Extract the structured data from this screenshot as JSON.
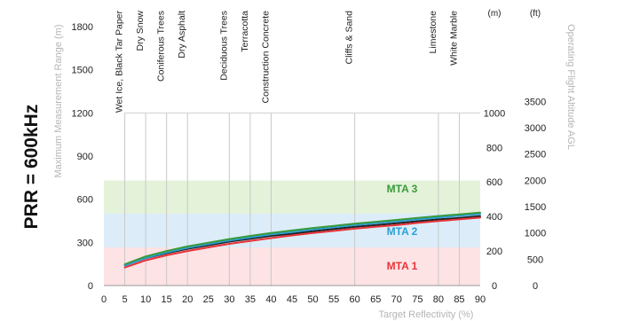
{
  "chart_data": {
    "type": "line",
    "prr_label": "PRR = 600kHz",
    "xlabel": "Target Reflectivity (%)",
    "ylabel": "Maximum Measurement Range (m)",
    "y2label": "Operating Flight Altitude AGL",
    "y2unit_m": "(m)",
    "y3unit_ft": "(ft)",
    "xlim": [
      0,
      90
    ],
    "ylim": [
      0,
      1800
    ],
    "x_ticks": [
      0,
      5,
      10,
      15,
      20,
      25,
      30,
      35,
      40,
      45,
      50,
      55,
      60,
      65,
      70,
      75,
      80,
      85,
      90
    ],
    "y_ticks": [
      0,
      300,
      600,
      900,
      1200,
      1500,
      1800
    ],
    "altitude_m_ticks": [
      0,
      200,
      400,
      600,
      800,
      1000
    ],
    "altitude_ft_ticks": [
      0,
      500,
      1000,
      1500,
      2000,
      2500,
      3000,
      3500
    ],
    "materials": [
      {
        "label": "Wet Ice, Black Tar Paper",
        "x": 5
      },
      {
        "label": "Dry Snow",
        "x": 10
      },
      {
        "label": "Coniferous Trees",
        "x": 15
      },
      {
        "label": "Dry Asphalt",
        "x": 20
      },
      {
        "label": "Deciduous Trees",
        "x": 30
      },
      {
        "label": "Terracotta",
        "x": 35
      },
      {
        "label": "Construction Concrete",
        "x": 40
      },
      {
        "label": "Cliffs & Sand",
        "x": 60
      },
      {
        "label": "Limestone",
        "x": 80
      },
      {
        "label": "White Marble",
        "x": 85
      }
    ],
    "bands": [
      {
        "name": "MTA 1",
        "range_m": [
          0,
          265
        ],
        "color": "#e8333a",
        "fill": "#fde3e4"
      },
      {
        "name": "MTA 2",
        "range_m": [
          265,
          500
        ],
        "color": "#2a9fd6",
        "fill": "#dcedf9"
      },
      {
        "name": "MTA 3",
        "range_m": [
          500,
          730
        ],
        "color": "#3a9a3a",
        "fill": "#e3f2d9"
      }
    ],
    "series": [
      {
        "color": "#222222",
        "x": [
          5,
          10,
          15,
          20,
          25,
          30,
          35,
          40,
          45,
          50,
          55,
          60,
          65,
          70,
          75,
          80,
          85,
          90
        ],
        "values": [
          140,
          190,
          225,
          255,
          280,
          305,
          325,
          345,
          360,
          378,
          393,
          408,
          420,
          433,
          447,
          460,
          470,
          482
        ]
      },
      {
        "color": "#e8333a",
        "x": [
          5,
          10,
          15,
          20,
          25,
          30,
          35,
          40,
          45,
          50,
          55,
          60,
          65,
          70,
          75,
          80,
          85,
          90
        ],
        "values": [
          125,
          175,
          210,
          240,
          265,
          290,
          310,
          330,
          348,
          365,
          380,
          395,
          408,
          420,
          435,
          448,
          460,
          472
        ]
      },
      {
        "color": "#2a9fd6",
        "x": [
          5,
          10,
          15,
          20,
          25,
          30,
          35,
          40,
          45,
          50,
          55,
          60,
          65,
          70,
          75,
          80,
          85,
          90
        ],
        "values": [
          138,
          192,
          230,
          262,
          288,
          313,
          335,
          355,
          372,
          390,
          405,
          420,
          433,
          446,
          460,
          472,
          485,
          496
        ]
      },
      {
        "color": "#3a9a3a",
        "x": [
          5,
          10,
          15,
          20,
          25,
          30,
          35,
          40,
          45,
          50,
          55,
          60,
          65,
          70,
          75,
          80,
          85,
          90
        ],
        "values": [
          148,
          202,
          240,
          272,
          298,
          323,
          345,
          365,
          383,
          400,
          415,
          430,
          443,
          456,
          470,
          483,
          495,
          507
        ]
      }
    ],
    "grid": true
  }
}
